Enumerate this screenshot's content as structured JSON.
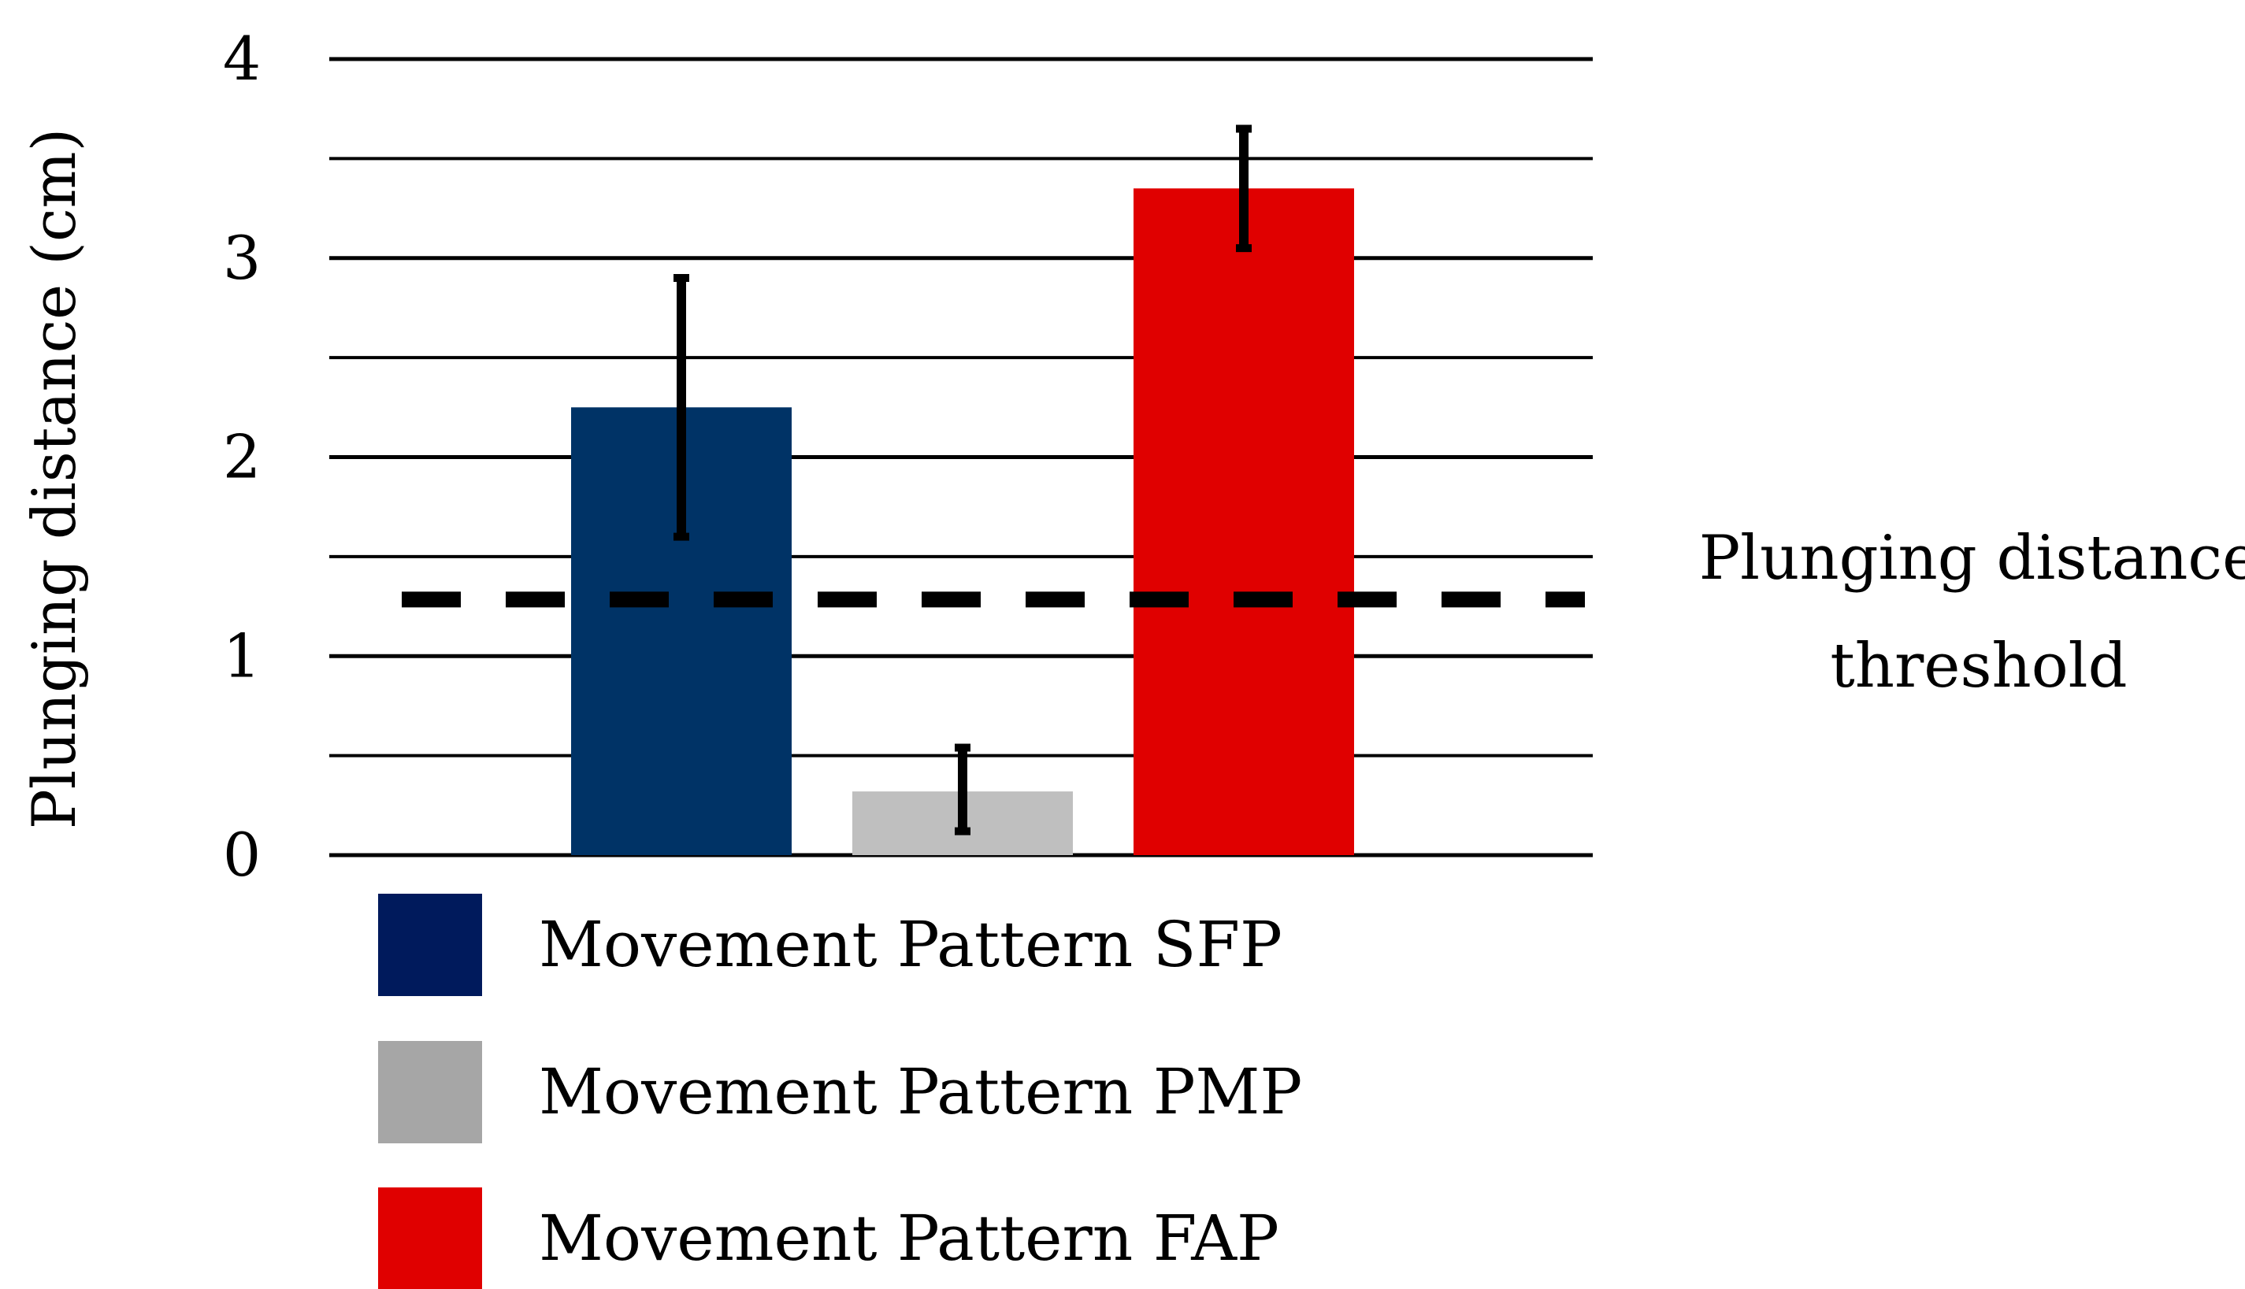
{
  "chart_data": {
    "type": "bar",
    "categories": [
      "Movement Pattern SFP",
      "Movement Pattern PMP",
      "Movement Pattern FAP"
    ],
    "values": [
      2.25,
      0.32,
      3.35
    ],
    "error_bars": [
      {
        "low": 1.6,
        "high": 2.9
      },
      {
        "low": 0.12,
        "high": 0.54
      },
      {
        "low": 3.05,
        "high": 3.65
      }
    ],
    "colors": [
      "#003366",
      "#bfbfbf",
      "#e00000"
    ],
    "legend": [
      {
        "label": "Movement Pattern SFP",
        "color": "#001a5c"
      },
      {
        "label": "Movement Pattern PMP",
        "color": "#a6a6a6"
      },
      {
        "label": "Movement Pattern FAP",
        "color": "#e00000"
      }
    ],
    "title": "",
    "xlabel": "",
    "ylabel": "Plunging distance (cm)",
    "ylim": [
      0,
      4
    ],
    "yticks": [
      "0",
      "1",
      "2",
      "3",
      "4"
    ],
    "grid": true,
    "minor_grid": true,
    "reference_line": {
      "value": 1.3,
      "style": "dashed",
      "label_lines": [
        "Plunging distance",
        "threshold"
      ]
    },
    "legend_position": "bottom-left"
  }
}
